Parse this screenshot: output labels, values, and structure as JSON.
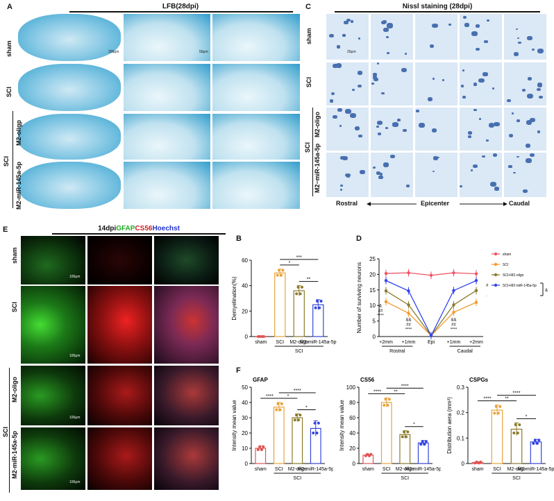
{
  "panelA": {
    "label": "A",
    "header": "LFB(28dpi)",
    "rows": [
      "sham",
      "SCI",
      "M2-oligp",
      "M2-miR-145a-5p"
    ],
    "group": "SCI",
    "scale1": "200μm",
    "scale2": "50μm"
  },
  "panelC": {
    "label": "C",
    "header": "Nissl staining (28dpi)",
    "rows": [
      "sham",
      "SCI",
      "M2-oligo",
      "M2−miR-145a-5p"
    ],
    "group": "SCI",
    "scale": "20μm",
    "axis_left": "Rostral",
    "axis_mid": "Epicenter",
    "axis_right": "Caudal"
  },
  "panelE": {
    "label": "E",
    "header_prefix": "14dpi",
    "header_gfap": "GFAP",
    "header_cs56": "CS56",
    "header_hoechst": "Hoechst",
    "rows": [
      "sham",
      "SCI",
      "M2-oligo",
      "M2-miR-145a-5p"
    ],
    "group": "SCI",
    "scale": "100μm",
    "colors": {
      "gfap": "#22cc22",
      "cs56": "#dd2222",
      "hoechst": "#2233dd"
    }
  },
  "panelB": {
    "label": "B"
  },
  "panelD": {
    "label": "D"
  },
  "panelF": {
    "label": "F"
  },
  "chart_data": [
    {
      "type": "bar",
      "id": "B",
      "categories": [
        "sham",
        "SCI",
        "M2-oligo",
        "M2-miR-145a-5p"
      ],
      "values": [
        0,
        50,
        36,
        25
      ],
      "errors": [
        0,
        3,
        4,
        4
      ],
      "ylabel": "Demyelination(%)",
      "ylim": [
        0,
        60
      ],
      "yticks": [
        0,
        20,
        40,
        60
      ],
      "group_label": "SCI",
      "sig": [
        {
          "from": 1,
          "to": 3,
          "label": "***"
        },
        {
          "from": 1,
          "to": 2,
          "label": "*"
        },
        {
          "from": 2,
          "to": 3,
          "label": "**"
        }
      ],
      "colors": [
        "#e05555",
        "#e8a23a",
        "#8a7a2a",
        "#3344dd"
      ]
    },
    {
      "type": "line",
      "id": "D",
      "categories": [
        "+2mm",
        "+1mm",
        "Epi",
        "+1mm",
        "+2mm"
      ],
      "ylabel": "Number of surviving neurons",
      "ylim": [
        0,
        25
      ],
      "yticks": [
        0,
        5,
        10,
        15,
        20,
        25
      ],
      "groups": [
        "Rostral",
        "Caudal"
      ],
      "series": [
        {
          "name": "sham",
          "values": [
            20.3,
            20.5,
            19.7,
            20.5,
            20.2
          ],
          "color": "#ee5566"
        },
        {
          "name": "SCI",
          "values": [
            11.2,
            7.5,
            0.3,
            7.8,
            11
          ],
          "color": "#f39a30"
        },
        {
          "name": "SCI+M2-oligo",
          "values": [
            14.7,
            10.2,
            0.3,
            10.2,
            14.8
          ],
          "color": "#8a7a2a"
        },
        {
          "name": "SCI+M2-miR-145a-5p",
          "values": [
            18,
            14.7,
            0.3,
            14.8,
            18
          ],
          "color": "#3344ee"
        }
      ],
      "legend_marks": [
        "#",
        "·",
        "&"
      ],
      "annot_left": [
        "&",
        "##",
        "****"
      ],
      "annot_mid_left": [
        "&&",
        "##",
        "****"
      ],
      "annot_mid_right": [
        "&&",
        "##",
        "****"
      ]
    },
    {
      "type": "bar",
      "id": "F1",
      "title": "GFAP",
      "categories": [
        "sham",
        "SCI",
        "M2-oligo",
        "M2-miR-145a-5p"
      ],
      "values": [
        10,
        37,
        30,
        23
      ],
      "errors": [
        1.5,
        3,
        2.5,
        5
      ],
      "ylabel": "Intensity mean value",
      "ylim": [
        0,
        50
      ],
      "yticks": [
        0,
        10,
        20,
        30,
        40,
        50
      ],
      "group_label": "SCI",
      "sig": [
        {
          "from": 0,
          "to": 1,
          "label": "****"
        },
        {
          "from": 1,
          "to": 3,
          "label": "****"
        },
        {
          "from": 1,
          "to": 2,
          "label": "*"
        },
        {
          "from": 2,
          "to": 3,
          "label": "*"
        }
      ]
    },
    {
      "type": "bar",
      "id": "F2",
      "title": "CS56",
      "categories": [
        "sham",
        "SCI",
        "M2-oligo",
        "M2-miR-145a-5p"
      ],
      "values": [
        11,
        80,
        38,
        27
      ],
      "errors": [
        1.5,
        6,
        5,
        3
      ],
      "ylabel": "Intensity mean value",
      "ylim": [
        0,
        100
      ],
      "yticks": [
        0,
        20,
        40,
        60,
        80,
        100
      ],
      "group_label": "SCI",
      "sig": [
        {
          "from": 0,
          "to": 1,
          "label": "****"
        },
        {
          "from": 1,
          "to": 3,
          "label": "****"
        },
        {
          "from": 1,
          "to": 2,
          "label": "**"
        },
        {
          "from": 2,
          "to": 3,
          "label": "*"
        }
      ]
    },
    {
      "type": "bar",
      "id": "F3",
      "title": "CSPGs",
      "categories": [
        "sham",
        "SCI",
        "M2-oligo",
        "M2-miR-145a-5p"
      ],
      "values": [
        0.004,
        0.21,
        0.135,
        0.085
      ],
      "errors": [
        0.003,
        0.02,
        0.025,
        0.01
      ],
      "ylabel": "Distribution aera (mm²)",
      "ylim": [
        0,
        0.3
      ],
      "yticks": [
        0.0,
        0.1,
        0.2,
        0.3
      ],
      "group_label": "SCI",
      "sig": [
        {
          "from": 0,
          "to": 1,
          "label": "****"
        },
        {
          "from": 1,
          "to": 3,
          "label": "****"
        },
        {
          "from": 1,
          "to": 2,
          "label": "**"
        },
        {
          "from": 2,
          "to": 3,
          "label": "*"
        }
      ]
    }
  ]
}
